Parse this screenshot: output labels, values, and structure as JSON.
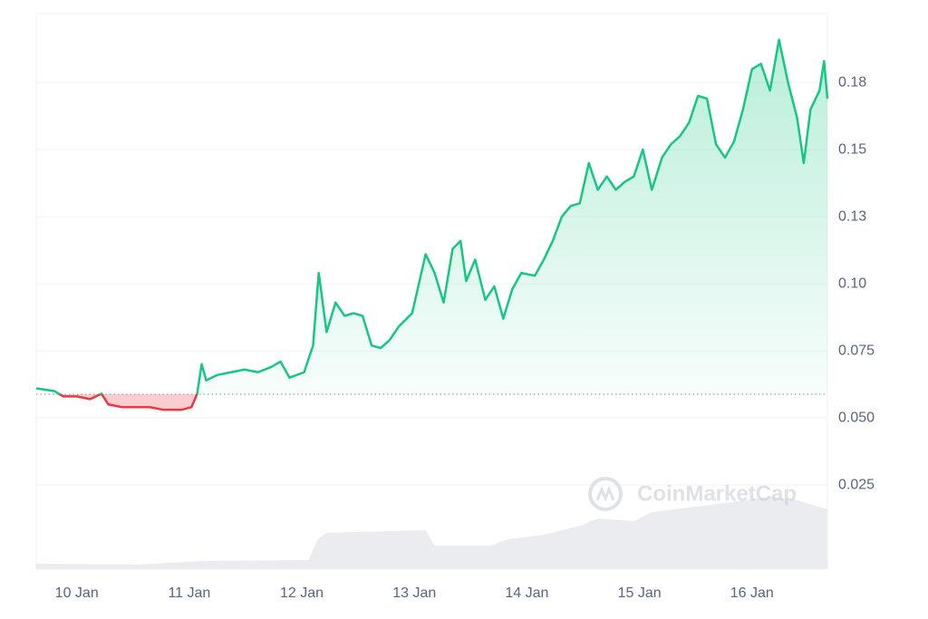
{
  "chart_data": {
    "type": "line",
    "watermark": "CoinMarketCap",
    "xlim": [
      9.64,
      16.67
    ],
    "xticks": [
      {
        "value": 10,
        "label": "10 Jan"
      },
      {
        "value": 11,
        "label": "11 Jan"
      },
      {
        "value": 12,
        "label": "12 Jan"
      },
      {
        "value": 13,
        "label": "13 Jan"
      },
      {
        "value": 14,
        "label": "14 Jan"
      },
      {
        "value": 15,
        "label": "15 Jan"
      },
      {
        "value": 16,
        "label": "16 Jan"
      }
    ],
    "ylim": [
      -0.0064,
      0.2007
    ],
    "yticks": [
      0.025,
      {
        "value": 0.05,
        "label": "0.050"
      },
      0.075,
      {
        "value": 0.1,
        "label": "0.10"
      },
      {
        "value": 0.125,
        "label": "0.13"
      },
      0.15,
      {
        "value": 0.175,
        "label": "0.18"
      }
    ],
    "y2lim": [
      0,
      100
    ],
    "grid": true,
    "baseline": 0.0588,
    "series": [
      {
        "color": "#16c784",
        "below_color": "#ea3943",
        "x": [
          9.64,
          9.8,
          9.88,
          10.0,
          10.12,
          10.22,
          10.28,
          10.4,
          10.53,
          10.65,
          10.77,
          10.93,
          11.02,
          11.07,
          11.11,
          11.15,
          11.25,
          11.37,
          11.49,
          11.61,
          11.73,
          11.81,
          11.89,
          12.02,
          12.1,
          12.15,
          12.22,
          12.3,
          12.38,
          12.46,
          12.54,
          12.62,
          12.7,
          12.78,
          12.86,
          12.98,
          13.1,
          13.18,
          13.26,
          13.34,
          13.41,
          13.46,
          13.54,
          13.63,
          13.71,
          13.79,
          13.87,
          13.95,
          14.07,
          14.15,
          14.23,
          14.31,
          14.39,
          14.47,
          14.55,
          14.63,
          14.71,
          14.79,
          14.87,
          14.95,
          15.03,
          15.11,
          15.2,
          15.28,
          15.36,
          15.44,
          15.52,
          15.6,
          15.68,
          15.76,
          15.84,
          15.92,
          16.0,
          16.08,
          16.16,
          16.24,
          16.32,
          16.4,
          16.46,
          16.52,
          16.6,
          16.64,
          16.67
        ],
        "values": [
          0.061,
          0.06,
          0.058,
          0.058,
          0.057,
          0.059,
          0.055,
          0.054,
          0.054,
          0.054,
          0.053,
          0.053,
          0.054,
          0.059,
          0.07,
          0.064,
          0.066,
          0.067,
          0.068,
          0.067,
          0.069,
          0.071,
          0.065,
          0.067,
          0.077,
          0.104,
          0.082,
          0.093,
          0.088,
          0.089,
          0.088,
          0.077,
          0.076,
          0.079,
          0.084,
          0.089,
          0.111,
          0.104,
          0.093,
          0.113,
          0.116,
          0.101,
          0.109,
          0.094,
          0.099,
          0.087,
          0.098,
          0.104,
          0.103,
          0.109,
          0.116,
          0.125,
          0.129,
          0.13,
          0.145,
          0.135,
          0.14,
          0.135,
          0.138,
          0.14,
          0.15,
          0.135,
          0.147,
          0.152,
          0.155,
          0.16,
          0.17,
          0.169,
          0.152,
          0.147,
          0.153,
          0.165,
          0.18,
          0.182,
          0.172,
          0.191,
          0.175,
          0.162,
          0.145,
          0.165,
          0.172,
          0.183,
          0.169
        ]
      },
      {
        "color": "#eaecef",
        "axis": "y2",
        "x": [
          9.64,
          10.53,
          11.13,
          12.06,
          12.14,
          12.22,
          13.1,
          13.18,
          13.67,
          13.83,
          14.15,
          14.47,
          14.63,
          14.95,
          15.11,
          15.44,
          15.76,
          16.16,
          16.4,
          16.67
        ],
        "values": [
          6,
          5,
          9,
          10,
          33,
          40,
          43,
          26,
          26,
          33,
          38,
          48,
          56,
          53,
          63,
          68,
          73,
          80,
          76,
          66
        ]
      }
    ]
  }
}
